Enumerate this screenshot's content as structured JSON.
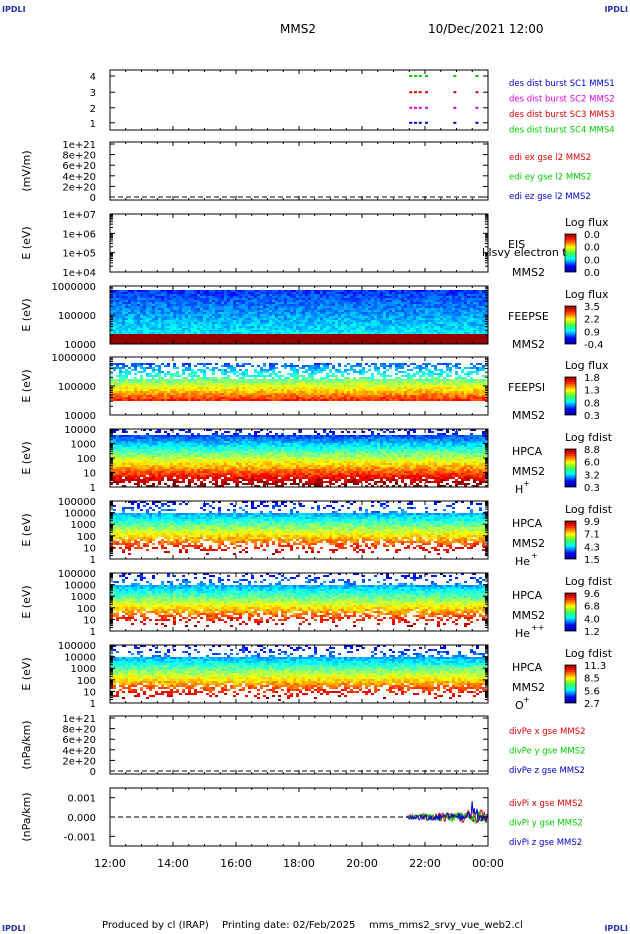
{
  "header": {
    "corner_label": "IPDLI",
    "spacecraft": "MMS2",
    "datetime": "10/Dec/2021 12:00"
  },
  "footer": {
    "produced_by": "Produced by cl (IRAP)",
    "printing_date": "Printing date: 02/Feb/2025",
    "script_name": "mms_mms2_srvy_vue_web2.cl"
  },
  "colors": {
    "red": "#dd0000",
    "green": "#00cc00",
    "blue": "#0000cc",
    "magenta": "#dd00dd"
  },
  "chart_data": {
    "type": "panels",
    "x_tick_labels": [
      "12:00",
      "14:00",
      "16:00",
      "18:00",
      "20:00",
      "22:00",
      "00:00"
    ],
    "panels": [
      {
        "id": "burst",
        "type": "scatter",
        "ylabel": "",
        "y_ticks": [
          "4",
          "3",
          "2",
          "1"
        ],
        "legend": [
          {
            "text": "des dist burst SC1 MMS1",
            "color": "#0000cc"
          },
          {
            "text": "des dist burst SC2 MMS2",
            "color": "#dd00dd"
          },
          {
            "text": "des dist burst SC3 MMS3",
            "color": "#dd0000"
          },
          {
            "text": "des dist burst SC4 MMS4",
            "color": "#00cc00"
          }
        ],
        "burst_times": [
          21.5,
          21.65,
          21.8,
          22.0,
          22.9,
          23.6
        ]
      },
      {
        "id": "edi",
        "type": "line",
        "ylabel": "(mV/m)",
        "y_ticks": [
          "1e+21",
          "8e+20",
          "6e+20",
          "4e+20",
          "2e+20",
          "0"
        ],
        "legend": [
          {
            "text": "edi ex gse l2 MMS2",
            "color": "#dd0000"
          },
          {
            "text": "edi ey gse l2 MMS2",
            "color": "#00cc00"
          },
          {
            "text": "edi ez gse l2 MMS2",
            "color": "#0000cc"
          }
        ]
      },
      {
        "id": "eis",
        "type": "heatmap",
        "ylabel": "E (eV)",
        "y_ticks": [
          "1e+07",
          "1e+06",
          "1e+05",
          "1e+04"
        ],
        "instrument": "EIS",
        "spacecraft": "MMS2",
        "overlay_text": "l lsvy electron to",
        "colorbar_title": "Log flux",
        "colorbar_ticks": [
          "0.0",
          "0.0",
          "0.0",
          "0.0"
        ]
      },
      {
        "id": "feeps_e",
        "type": "heatmap",
        "ylabel": "E (eV)",
        "y_ticks": [
          "1000000",
          "100000",
          "10000"
        ],
        "instrument": "FEEPSE",
        "spacecraft": "MMS2",
        "colorbar_title": "Log flux",
        "colorbar_ticks": [
          "3.5",
          "2.2",
          "0.9",
          "-0.4"
        ]
      },
      {
        "id": "feeps_i",
        "type": "heatmap",
        "ylabel": "E (eV)",
        "y_ticks": [
          "1000000",
          "100000",
          "10000"
        ],
        "instrument": "FEEPSI",
        "spacecraft": "MMS2",
        "colorbar_title": "Log flux",
        "colorbar_ticks": [
          "1.8",
          "1.3",
          "0.8",
          "0.3"
        ]
      },
      {
        "id": "hpca_h",
        "type": "heatmap",
        "ylabel": "E (eV)",
        "y_ticks": [
          "10000",
          "1000",
          "100",
          "10",
          "1"
        ],
        "instrument": "HPCA",
        "spacecraft": "MMS2",
        "species": "H",
        "charge": "+",
        "colorbar_title": "Log fdist",
        "colorbar_ticks": [
          "8.8",
          "6.0",
          "3.2",
          "0.3"
        ]
      },
      {
        "id": "hpca_he",
        "type": "heatmap",
        "ylabel": "E (eV)",
        "y_ticks": [
          "100000",
          "10000",
          "1000",
          "100",
          "10",
          "1"
        ],
        "instrument": "HPCA",
        "spacecraft": "MMS2",
        "species": "He",
        "charge": "+",
        "colorbar_title": "Log fdist",
        "colorbar_ticks": [
          "9.9",
          "7.1",
          "4.3",
          "1.5"
        ]
      },
      {
        "id": "hpca_hepp",
        "type": "heatmap",
        "ylabel": "E (eV)",
        "y_ticks": [
          "100000",
          "10000",
          "1000",
          "100",
          "10",
          "1"
        ],
        "instrument": "HPCA",
        "spacecraft": "MMS2",
        "species": "He",
        "charge": "++",
        "colorbar_title": "Log fdist",
        "colorbar_ticks": [
          "9.6",
          "6.8",
          "4.0",
          "1.2"
        ]
      },
      {
        "id": "hpca_o",
        "type": "heatmap",
        "ylabel": "E (eV)",
        "y_ticks": [
          "100000",
          "10000",
          "1000",
          "100",
          "10",
          "1"
        ],
        "instrument": "HPCA",
        "spacecraft": "MMS2",
        "species": "O",
        "charge": "+",
        "colorbar_title": "Log fdist",
        "colorbar_ticks": [
          "11.3",
          "8.5",
          "5.6",
          "2.7"
        ]
      },
      {
        "id": "divpe",
        "type": "line",
        "ylabel": "(nPa/km)",
        "y_ticks": [
          "1e+21",
          "8e+20",
          "6e+20",
          "4e+20",
          "2e+20",
          "0"
        ],
        "legend": [
          {
            "text": "divPe x gse MMS2",
            "color": "#dd0000"
          },
          {
            "text": "divPe y gse MMS2",
            "color": "#00cc00"
          },
          {
            "text": "divPe z gse MMS2",
            "color": "#0000cc"
          }
        ]
      },
      {
        "id": "divpi",
        "type": "line",
        "ylabel": "(nPa/km)",
        "y_ticks": [
          "0.001",
          "0.000",
          "-0.001"
        ],
        "y_values": [
          0.001,
          0.0,
          -0.001
        ],
        "ylim": [
          -0.0015,
          0.0015
        ],
        "data_start_hour": 21.4,
        "legend": [
          {
            "text": "divPi x gse MMS2",
            "color": "#dd0000"
          },
          {
            "text": "divPi y gse MMS2",
            "color": "#00cc00"
          },
          {
            "text": "divPi z gse MMS2",
            "color": "#0000cc"
          }
        ]
      }
    ]
  }
}
